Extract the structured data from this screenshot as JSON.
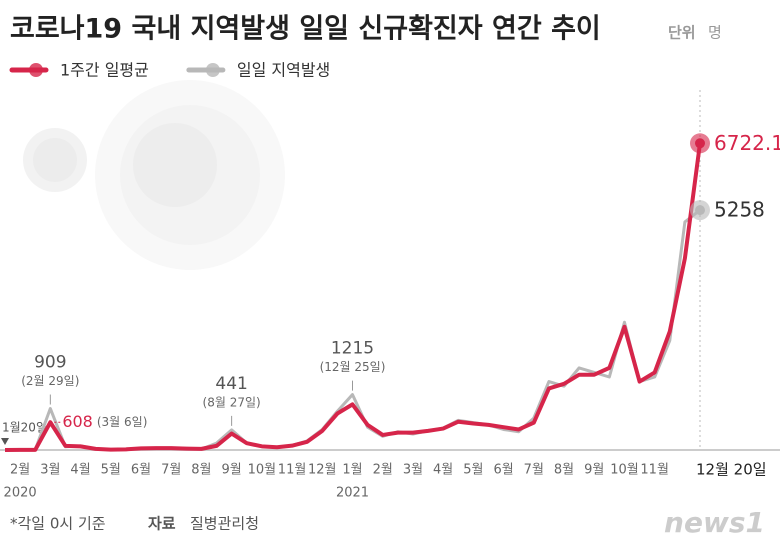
{
  "chart_data": {
    "type": "line",
    "title": "코로나19 국내 지역발생 일일 신규확진자 연간 추이",
    "unit_label": "단위",
    "unit": "명",
    "start_label": "1월20일",
    "years": [
      "2020",
      "2021"
    ],
    "categories": [
      null,
      "2월",
      null,
      "3월",
      null,
      "4월",
      null,
      "5월",
      null,
      "6월",
      null,
      "7월",
      null,
      "8월",
      null,
      "9월",
      null,
      "10월",
      null,
      "11월",
      null,
      "12월",
      null,
      "1월",
      null,
      "2월",
      null,
      "3월",
      null,
      "4월",
      null,
      "5월",
      null,
      "6월",
      null,
      "7월",
      null,
      "8월",
      null,
      "9월",
      null,
      "10월",
      null,
      "11월",
      null,
      null,
      "12월 20일"
    ],
    "series": [
      {
        "name": "일일 지역발생",
        "color": "#b8b8b8",
        "values": [
          1,
          2,
          5,
          909,
          70,
          90,
          20,
          5,
          20,
          30,
          35,
          40,
          35,
          20,
          150,
          441,
          150,
          80,
          60,
          100,
          200,
          450,
          850,
          1215,
          500,
          300,
          400,
          350,
          420,
          480,
          650,
          600,
          550,
          450,
          400,
          700,
          1500,
          1400,
          1800,
          1700,
          1600,
          2800,
          1500,
          1600,
          2400,
          5000,
          5258
        ]
      },
      {
        "name": "1주간 일평균",
        "color": "#d6254a",
        "values": [
          1,
          2,
          3,
          608,
          90,
          80,
          25,
          8,
          15,
          35,
          40,
          40,
          30,
          25,
          90,
          360,
          150,
          80,
          60,
          95,
          180,
          420,
          800,
          1000,
          550,
          330,
          380,
          380,
          420,
          470,
          620,
          580,
          550,
          500,
          450,
          600,
          1350,
          1450,
          1650,
          1650,
          1800,
          2700,
          1500,
          1700,
          2600,
          4200,
          6722.1
        ]
      }
    ],
    "legend_order": [
      1,
      0
    ],
    "ylim": [
      0,
      8000
    ],
    "annotations": [
      {
        "value": 909,
        "note": "(2월 29일)"
      },
      {
        "value": 608,
        "note": "(3월 6일)"
      },
      {
        "value": 441,
        "note": "(8월 27일)"
      },
      {
        "value": 1215,
        "note": "(12월 25일)"
      },
      {
        "value": 6722.1
      },
      {
        "value": 5258
      }
    ],
    "footnote": "*각일 0시 기준",
    "source_label": "자료",
    "source": "질병관리청",
    "logo": "news1"
  }
}
